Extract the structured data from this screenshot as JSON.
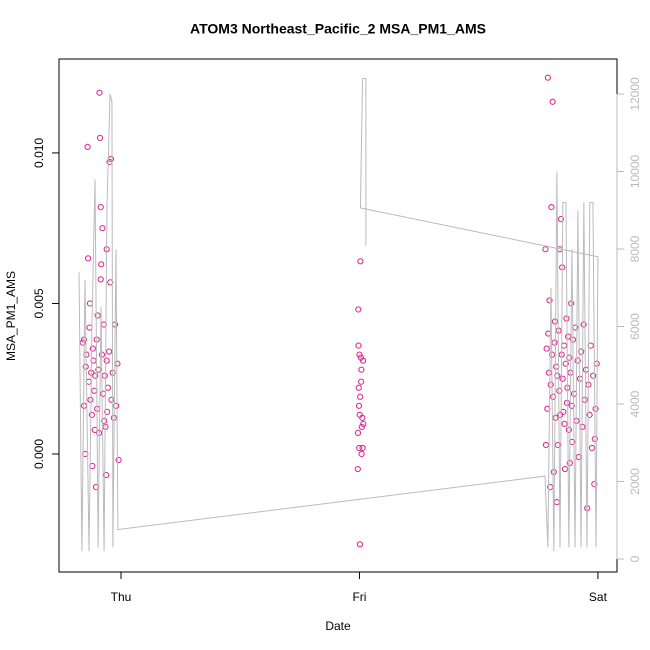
{
  "chart_data": {
    "type": "scatter",
    "title": "ATOM3 Northeast_Pacific_2 MSA_PM1_AMS",
    "xlabel": "Date",
    "ylabel": "MSA_PM1_AMS",
    "xlim": [
      -0.26,
      2.08
    ],
    "ylim": [
      -0.00392,
      0.01312
    ],
    "y2lim": [
      -335,
      12903
    ],
    "xticks": [
      {
        "value": 0,
        "label": "Thu"
      },
      {
        "value": 1,
        "label": "Fri"
      },
      {
        "value": 2,
        "label": "Sat"
      }
    ],
    "yticks": [
      {
        "value": 0,
        "label": "0.000"
      },
      {
        "value": 0.005,
        "label": "0.005"
      },
      {
        "value": 0.01,
        "label": "0.010"
      }
    ],
    "y2ticks": [
      0,
      2000,
      4000,
      6000,
      8000,
      10000,
      12000
    ],
    "series": [
      {
        "type": "scatter",
        "color": "#e0208f",
        "x": [
          -0.16,
          -0.155,
          -0.15,
          -0.148,
          -0.145,
          -0.14,
          -0.138,
          -0.135,
          -0.132,
          -0.13,
          -0.128,
          -0.125,
          -0.122,
          -0.12,
          -0.118,
          -0.115,
          -0.112,
          -0.11,
          -0.108,
          -0.105,
          -0.102,
          -0.1,
          -0.098,
          -0.095,
          -0.092,
          -0.09,
          -0.088,
          -0.085,
          -0.083,
          -0.08,
          -0.078,
          -0.075,
          -0.072,
          -0.07,
          -0.068,
          -0.065,
          -0.062,
          -0.06,
          -0.058,
          -0.055,
          -0.05,
          -0.048,
          -0.045,
          -0.04,
          -0.035,
          -0.03,
          -0.025,
          -0.02,
          -0.015,
          -0.01,
          -0.155,
          -0.085,
          -0.06,
          -0.042,
          0.993,
          0.995,
          0.996,
          0.997,
          0.998,
          0.999,
          1.0,
          1.001,
          1.002,
          1.003,
          1.004,
          1.006,
          1.007,
          1.008,
          1.009,
          1.01,
          1.012,
          1.013,
          1.015,
          1.016,
          0.994,
          1.78,
          1.782,
          1.785,
          1.788,
          1.79,
          1.792,
          1.795,
          1.797,
          1.8,
          1.802,
          1.805,
          1.808,
          1.81,
          1.812,
          1.815,
          1.818,
          1.82,
          1.822,
          1.825,
          1.828,
          1.83,
          1.832,
          1.835,
          1.838,
          1.84,
          1.842,
          1.845,
          1.848,
          1.85,
          1.852,
          1.855,
          1.858,
          1.86,
          1.862,
          1.865,
          1.868,
          1.87,
          1.872,
          1.875,
          1.878,
          1.88,
          1.882,
          1.885,
          1.888,
          1.89,
          1.892,
          1.895,
          1.9,
          1.905,
          1.91,
          1.915,
          1.92,
          1.925,
          1.93,
          1.935,
          1.94,
          1.945,
          1.95,
          1.955,
          1.96,
          1.965,
          1.97,
          1.975,
          1.98,
          1.985,
          1.99,
          1.995,
          1.987
        ],
        "values": [
          0.0037,
          0.0016,
          0.0,
          0.0029,
          0.0033,
          0.0102,
          0.0065,
          0.0024,
          0.0042,
          0.005,
          0.0018,
          0.0027,
          0.0013,
          -0.0004,
          0.0035,
          0.0031,
          0.0021,
          0.0008,
          0.0026,
          -0.0011,
          0.0038,
          0.0015,
          0.0046,
          0.0028,
          0.0007,
          0.012,
          0.0105,
          0.0082,
          0.0063,
          0.0033,
          0.0075,
          0.002,
          0.0043,
          0.0011,
          0.0026,
          0.0009,
          -0.0007,
          0.0031,
          0.0014,
          0.0022,
          0.0034,
          0.0097,
          0.0057,
          0.0018,
          0.0027,
          0.0012,
          0.0043,
          0.0016,
          0.003,
          -0.0002,
          0.0038,
          0.0058,
          0.0068,
          0.0098,
          -0.0005,
          0.0048,
          0.0036,
          0.0022,
          0.0016,
          0.0002,
          0.0033,
          0.0013,
          -0.003,
          0.0019,
          0.0064,
          0.0032,
          0.0024,
          0.0028,
          0.0,
          0.0009,
          0.0012,
          0.0002,
          0.0031,
          0.001,
          0.0007,
          0.0068,
          0.0003,
          0.0035,
          0.0015,
          0.0125,
          0.004,
          0.0027,
          0.0051,
          -0.0011,
          0.0023,
          0.0082,
          0.0033,
          0.0117,
          0.0019,
          -0.0006,
          0.0037,
          0.0044,
          0.0012,
          0.0029,
          -0.0016,
          0.0026,
          0.0003,
          0.0041,
          0.0021,
          0.0068,
          0.0013,
          0.0078,
          0.0033,
          0.0062,
          0.0025,
          0.0014,
          0.0036,
          0.001,
          -0.0005,
          0.003,
          0.0045,
          0.0017,
          0.0022,
          0.0039,
          0.0008,
          0.0032,
          -0.0003,
          0.0027,
          0.005,
          0.0016,
          0.0004,
          0.0038,
          0.002,
          0.0042,
          0.0011,
          0.0031,
          -0.0001,
          0.0025,
          0.0034,
          0.0009,
          0.0043,
          0.0018,
          0.0028,
          -0.0018,
          0.0023,
          0.0013,
          0.0036,
          0.0002,
          0.0026,
          -0.001,
          0.0015,
          0.003,
          0.0005
        ]
      },
      {
        "type": "line",
        "axis": "y2",
        "color": "#bbbbbb",
        "x": [
          -0.176,
          -0.164,
          -0.151,
          -0.134,
          -0.122,
          -0.109,
          -0.096,
          -0.084,
          -0.071,
          -0.059,
          -0.046,
          -0.038,
          -0.034,
          -0.021,
          -0.013,
          1.778,
          1.79,
          1.803,
          1.815,
          1.828,
          1.841,
          1.853,
          1.866,
          1.878,
          1.891,
          1.904,
          1.916,
          1.929,
          1.941,
          1.954,
          1.966,
          1.979,
          1.992,
          2.0,
          1.004,
          1.013,
          1.027,
          1.027
        ],
        "values": [
          7400,
          200,
          7200,
          200,
          6000,
          9800,
          300,
          6500,
          200,
          9000,
          12000,
          11800,
          300,
          8000,
          760,
          2140,
          300,
          7000,
          200,
          10000,
          300,
          9200,
          9200,
          300,
          8000,
          300,
          9000,
          300,
          9200,
          300,
          9200,
          9200,
          300,
          7800,
          9060,
          12400,
          12400,
          8080
        ]
      }
    ]
  }
}
